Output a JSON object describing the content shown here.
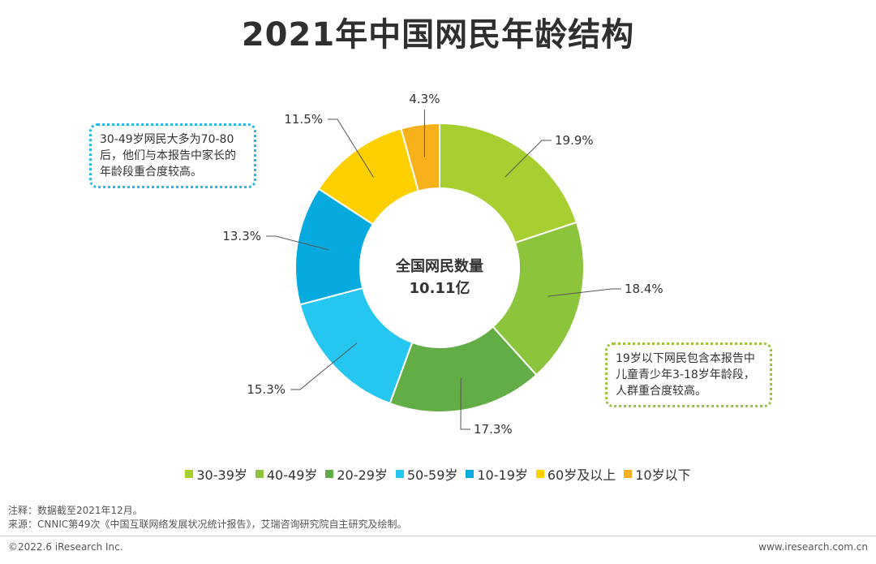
{
  "colors": {
    "accent_left_note": "#29b8e5",
    "accent_right_note": "#9cc43a"
  },
  "chart_data": {
    "type": "pie",
    "title": "2021年中国网民年龄结构",
    "center_label_line1": "全国网民数量",
    "center_label_line2": "10.11亿",
    "series": [
      {
        "name": "30-39岁",
        "value": 19.9,
        "label": "19.9%",
        "color": "#a6cf2f"
      },
      {
        "name": "40-49岁",
        "value": 18.4,
        "label": "18.4%",
        "color": "#8cc43c"
      },
      {
        "name": "20-29岁",
        "value": 17.3,
        "label": "17.3%",
        "color": "#62ad45"
      },
      {
        "name": "50-59岁",
        "value": 15.3,
        "label": "15.3%",
        "color": "#25c6ef"
      },
      {
        "name": "10-19岁",
        "value": 13.3,
        "label": "13.3%",
        "color": "#07aadf"
      },
      {
        "name": "60岁及以上",
        "value": 11.5,
        "label": "11.5%",
        "color": "#fed000"
      },
      {
        "name": "10岁以下",
        "value": 4.3,
        "label": "4.3%",
        "color": "#f7b21b"
      }
    ],
    "legend_position": "bottom"
  },
  "notes": {
    "left": "30-49岁网民大多为70-80后，他们与本报告中家长的年龄段重合度较高。",
    "right": "19岁以下网民包含本报告中儿童青少年3-18岁年龄段，人群重合度较高。"
  },
  "footnotes": {
    "note": "注释：数据截至2021年12月。",
    "source": "来源：CNNIC第49次《中国互联网络发展状况统计报告》，艾瑞咨询研究院自主研究及绘制。"
  },
  "footer": {
    "copyright": "©2022.6 iResearch Inc.",
    "website": "www.iresearch.com.cn"
  }
}
